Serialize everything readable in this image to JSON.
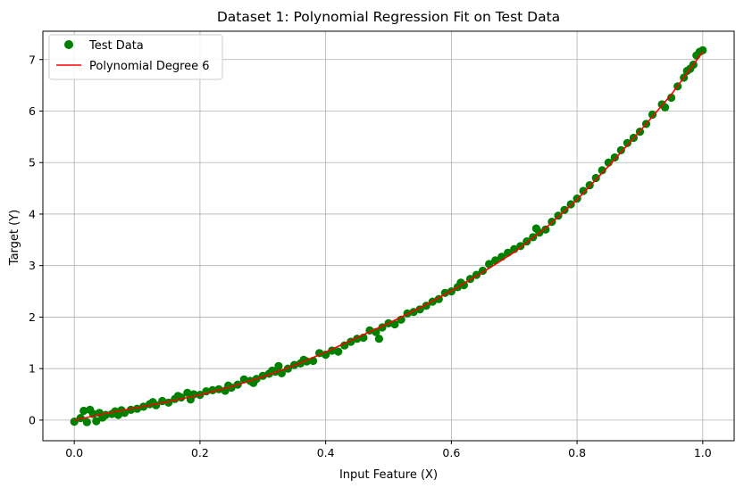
{
  "chart_data": {
    "type": "scatter",
    "title": "Dataset 1: Polynomial Regression Fit on Test Data",
    "xlabel": "Input Feature (X)",
    "ylabel": "Target (Y)",
    "xlim": [
      -0.05,
      1.05
    ],
    "ylim": [
      -0.4,
      7.55
    ],
    "xticks": [
      0.0,
      0.2,
      0.4,
      0.6,
      0.8,
      1.0
    ],
    "xtick_labels": [
      "0.0",
      "0.2",
      "0.4",
      "0.6",
      "0.8",
      "1.0"
    ],
    "yticks": [
      0,
      1,
      2,
      3,
      4,
      5,
      6,
      7
    ],
    "ytick_labels": [
      "0",
      "1",
      "2",
      "3",
      "4",
      "5",
      "6",
      "7"
    ],
    "grid": true,
    "legend_position": "top-left",
    "series": [
      {
        "name": "Test Data",
        "kind": "scatter",
        "color": "#008000",
        "points": [
          [
            0.0,
            -0.03
          ],
          [
            0.01,
            0.04
          ],
          [
            0.015,
            0.18
          ],
          [
            0.02,
            -0.04
          ],
          [
            0.025,
            0.2
          ],
          [
            0.03,
            0.12
          ],
          [
            0.035,
            -0.02
          ],
          [
            0.04,
            0.14
          ],
          [
            0.045,
            0.05
          ],
          [
            0.05,
            0.1
          ],
          [
            0.06,
            0.12
          ],
          [
            0.065,
            0.17
          ],
          [
            0.07,
            0.1
          ],
          [
            0.075,
            0.19
          ],
          [
            0.08,
            0.14
          ],
          [
            0.09,
            0.2
          ],
          [
            0.1,
            0.22
          ],
          [
            0.11,
            0.26
          ],
          [
            0.12,
            0.31
          ],
          [
            0.125,
            0.35
          ],
          [
            0.13,
            0.29
          ],
          [
            0.14,
            0.37
          ],
          [
            0.15,
            0.34
          ],
          [
            0.16,
            0.41
          ],
          [
            0.165,
            0.47
          ],
          [
            0.17,
            0.44
          ],
          [
            0.18,
            0.53
          ],
          [
            0.185,
            0.4
          ],
          [
            0.19,
            0.5
          ],
          [
            0.2,
            0.49
          ],
          [
            0.21,
            0.56
          ],
          [
            0.22,
            0.58
          ],
          [
            0.23,
            0.6
          ],
          [
            0.24,
            0.57
          ],
          [
            0.245,
            0.67
          ],
          [
            0.25,
            0.63
          ],
          [
            0.26,
            0.69
          ],
          [
            0.27,
            0.79
          ],
          [
            0.28,
            0.76
          ],
          [
            0.285,
            0.72
          ],
          [
            0.29,
            0.8
          ],
          [
            0.3,
            0.86
          ],
          [
            0.31,
            0.9
          ],
          [
            0.315,
            0.96
          ],
          [
            0.32,
            0.94
          ],
          [
            0.325,
            1.05
          ],
          [
            0.33,
            0.91
          ],
          [
            0.34,
            1.0
          ],
          [
            0.35,
            1.07
          ],
          [
            0.36,
            1.1
          ],
          [
            0.365,
            1.17
          ],
          [
            0.37,
            1.14
          ],
          [
            0.38,
            1.15
          ],
          [
            0.39,
            1.3
          ],
          [
            0.4,
            1.27
          ],
          [
            0.41,
            1.35
          ],
          [
            0.42,
            1.33
          ],
          [
            0.43,
            1.45
          ],
          [
            0.44,
            1.52
          ],
          [
            0.45,
            1.58
          ],
          [
            0.46,
            1.6
          ],
          [
            0.47,
            1.74
          ],
          [
            0.48,
            1.71
          ],
          [
            0.485,
            1.58
          ],
          [
            0.49,
            1.8
          ],
          [
            0.5,
            1.88
          ],
          [
            0.51,
            1.86
          ],
          [
            0.52,
            1.95
          ],
          [
            0.53,
            2.07
          ],
          [
            0.54,
            2.1
          ],
          [
            0.55,
            2.15
          ],
          [
            0.56,
            2.22
          ],
          [
            0.57,
            2.3
          ],
          [
            0.58,
            2.35
          ],
          [
            0.59,
            2.47
          ],
          [
            0.6,
            2.5
          ],
          [
            0.61,
            2.58
          ],
          [
            0.615,
            2.67
          ],
          [
            0.62,
            2.62
          ],
          [
            0.63,
            2.74
          ],
          [
            0.64,
            2.82
          ],
          [
            0.65,
            2.9
          ],
          [
            0.66,
            3.03
          ],
          [
            0.67,
            3.1
          ],
          [
            0.68,
            3.17
          ],
          [
            0.69,
            3.25
          ],
          [
            0.7,
            3.32
          ],
          [
            0.71,
            3.38
          ],
          [
            0.72,
            3.47
          ],
          [
            0.73,
            3.55
          ],
          [
            0.735,
            3.72
          ],
          [
            0.74,
            3.64
          ],
          [
            0.75,
            3.7
          ],
          [
            0.76,
            3.85
          ],
          [
            0.77,
            3.97
          ],
          [
            0.78,
            4.08
          ],
          [
            0.79,
            4.19
          ],
          [
            0.8,
            4.3
          ],
          [
            0.81,
            4.45
          ],
          [
            0.82,
            4.56
          ],
          [
            0.83,
            4.7
          ],
          [
            0.84,
            4.85
          ],
          [
            0.85,
            5.0
          ],
          [
            0.86,
            5.1
          ],
          [
            0.87,
            5.24
          ],
          [
            0.88,
            5.38
          ],
          [
            0.89,
            5.48
          ],
          [
            0.9,
            5.6
          ],
          [
            0.91,
            5.75
          ],
          [
            0.92,
            5.93
          ],
          [
            0.935,
            6.13
          ],
          [
            0.94,
            6.07
          ],
          [
            0.95,
            6.26
          ],
          [
            0.96,
            6.48
          ],
          [
            0.97,
            6.65
          ],
          [
            0.975,
            6.78
          ],
          [
            0.98,
            6.82
          ],
          [
            0.985,
            6.9
          ],
          [
            0.99,
            7.08
          ],
          [
            0.995,
            7.15
          ],
          [
            1.0,
            7.18
          ]
        ]
      },
      {
        "name": "Polynomial Degree 6",
        "kind": "line",
        "color": "#ff0000",
        "x": [
          0.0,
          0.05,
          0.1,
          0.15,
          0.2,
          0.25,
          0.3,
          0.35,
          0.4,
          0.45,
          0.5,
          0.55,
          0.6,
          0.65,
          0.7,
          0.75,
          0.8,
          0.85,
          0.9,
          0.95,
          1.0
        ],
        "y": [
          0.0,
          0.13,
          0.24,
          0.36,
          0.49,
          0.65,
          0.84,
          1.06,
          1.32,
          1.6,
          1.88,
          2.18,
          2.51,
          2.87,
          3.26,
          3.73,
          4.28,
          4.93,
          5.61,
          6.32,
          7.15
        ]
      }
    ]
  }
}
